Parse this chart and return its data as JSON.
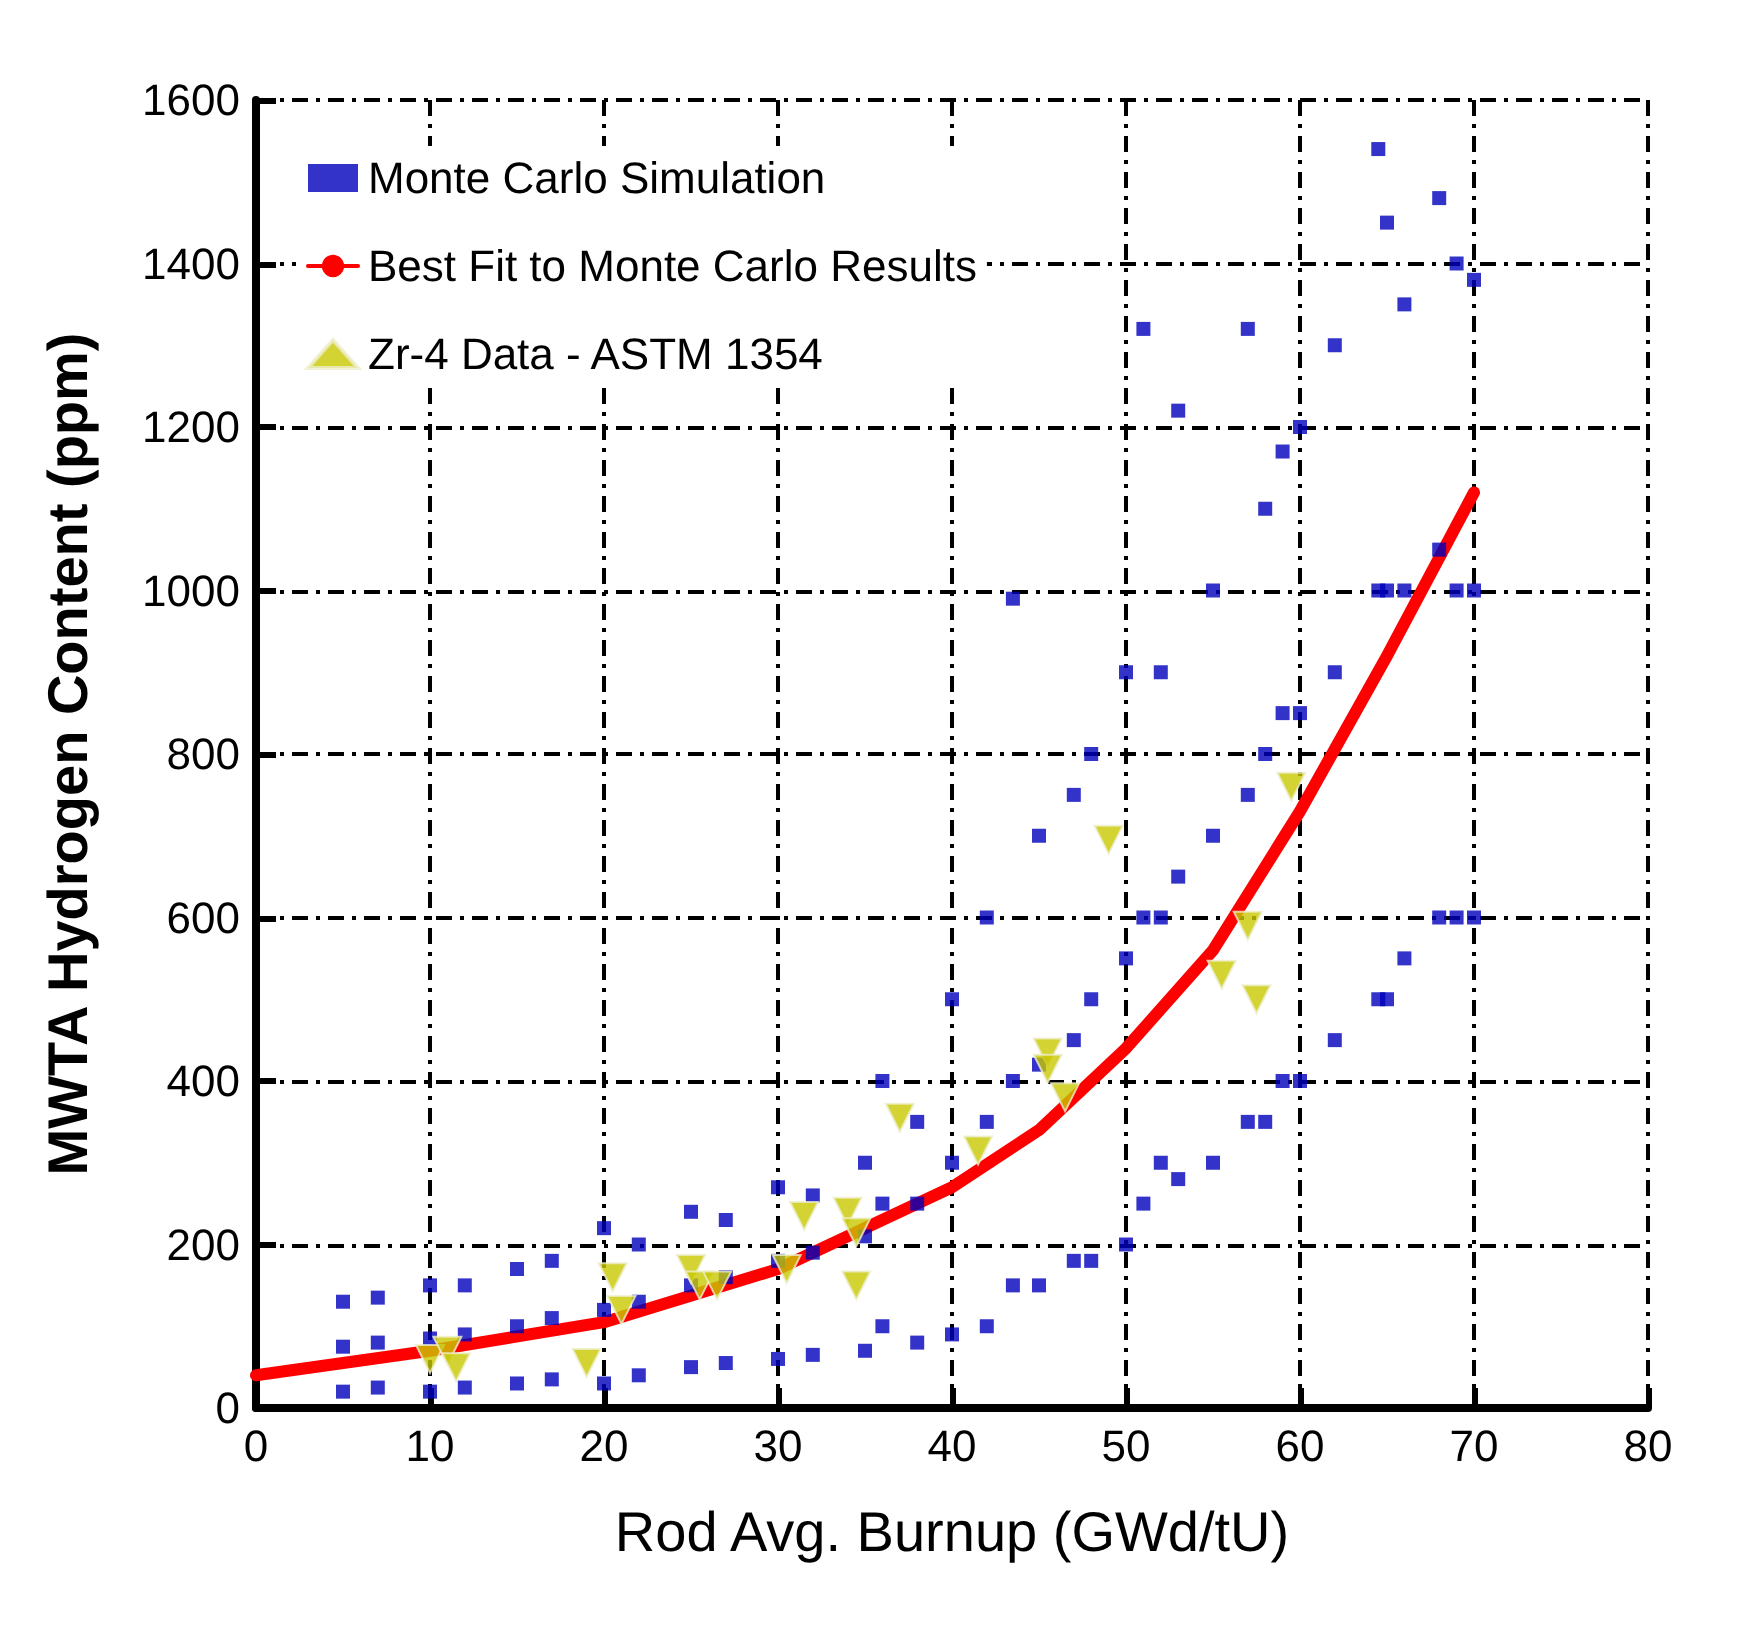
{
  "chart_data": {
    "type": "scatter",
    "xlabel": "Rod Avg. Burnup (GWd/tU)",
    "ylabel": "MWTA Hydrogen Content (ppm)",
    "xlim": [
      0,
      80
    ],
    "xticks": [
      0,
      10,
      20,
      30,
      40,
      50,
      60,
      70,
      80
    ],
    "ylim": [
      0,
      1600
    ],
    "yticks": [
      0,
      200,
      400,
      600,
      800,
      1000,
      1200,
      1400,
      1600
    ],
    "grid": true,
    "legend": "top left",
    "series": [
      {
        "name": "Monte Carlo Simulation",
        "marker": "square",
        "color": "#0000bb",
        "x": [
          5,
          5,
          5,
          7,
          7,
          7,
          10,
          10,
          10,
          12,
          12,
          12,
          15,
          15,
          15,
          17,
          17,
          17,
          20,
          20,
          20,
          22,
          22,
          22,
          25,
          25,
          25,
          27,
          27,
          27,
          30,
          30,
          30,
          32,
          32,
          32,
          35,
          35,
          35,
          36,
          36,
          36,
          38,
          38,
          38,
          40,
          40,
          40,
          42,
          42,
          42,
          43.5,
          43.5,
          43.5,
          45,
          45,
          45,
          47,
          47,
          47,
          48,
          48,
          48,
          50,
          50,
          50,
          51,
          51,
          51,
          52,
          52,
          52,
          53,
          53,
          53,
          55,
          55,
          55,
          57,
          57,
          57,
          58,
          58,
          58,
          59,
          59,
          59,
          60,
          60,
          60,
          62,
          62,
          62,
          64.5,
          64.5,
          64.5,
          65,
          65,
          65,
          66,
          66,
          66,
          68,
          68,
          68,
          69,
          69,
          69,
          70,
          70,
          70
        ],
        "values": [
          20,
          75,
          130,
          25,
          80,
          135,
          20,
          85,
          150,
          25,
          90,
          150,
          30,
          100,
          170,
          35,
          110,
          180,
          30,
          120,
          220,
          40,
          130,
          200,
          50,
          150,
          240,
          55,
          160,
          230,
          60,
          180,
          270,
          65,
          190,
          260,
          70,
          210,
          300,
          100,
          250,
          400,
          80,
          250,
          350,
          90,
          300,
          500,
          100,
          350,
          600,
          150,
          400,
          990,
          150,
          420,
          700,
          180,
          450,
          750,
          180,
          500,
          800,
          200,
          550,
          900,
          250,
          600,
          1320,
          300,
          600,
          900,
          280,
          650,
          1220,
          300,
          700,
          1000,
          350,
          750,
          1320,
          350,
          800,
          1100,
          400,
          850,
          1170,
          400,
          850,
          1200,
          450,
          900,
          1300,
          500,
          1000,
          1540,
          500,
          1000,
          1450,
          550,
          1000,
          1350,
          600,
          1050,
          1480,
          600,
          1000,
          1400,
          600,
          1000,
          1380
        ]
      },
      {
        "name": "Best Fit to Monte Carlo Results",
        "type": "line",
        "marker": "none",
        "line_style": "solid",
        "color": "#ff0000",
        "x": [
          0,
          5,
          10,
          20,
          30,
          40,
          45,
          50,
          55,
          60,
          65,
          70
        ],
        "values": [
          40,
          55,
          70,
          105,
          170,
          270,
          340,
          440,
          560,
          730,
          920,
          1120
        ]
      },
      {
        "name": "Zr-4 Data - ASTM 1354",
        "marker": "triangle",
        "color": "#c8c800",
        "x": [
          10,
          11,
          11.5,
          19,
          20.5,
          21,
          25,
          25.5,
          26.5,
          30.5,
          31.5,
          34,
          34.5,
          34.5,
          37,
          41.5,
          45.5,
          45.5,
          46.5,
          49,
          55.5,
          57,
          57.5,
          59.5
        ],
        "values": [
          60,
          70,
          50,
          55,
          160,
          120,
          170,
          150,
          150,
          170,
          235,
          240,
          215,
          150,
          355,
          315,
          435,
          415,
          380,
          695,
          530,
          590,
          500,
          760
        ]
      }
    ]
  }
}
